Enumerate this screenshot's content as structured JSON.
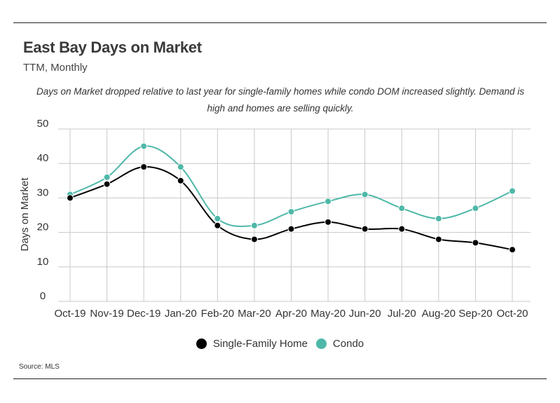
{
  "header": {
    "title": "East Bay Days on Market",
    "subtitle": "TTM, Monthly",
    "caption": "Days on Market dropped relative to last year for single-family homes while condo DOM increased slightly. Demand is high and homes are selling quickly."
  },
  "footer": {
    "source": "Source:  MLS"
  },
  "chart_data": {
    "type": "line",
    "title": "East Bay Days on Market",
    "subtitle": "TTM, Monthly",
    "xlabel": "",
    "ylabel": "Days on Market",
    "ylim": [
      0,
      50
    ],
    "yticks": [
      0,
      10,
      20,
      30,
      40,
      50
    ],
    "grid": true,
    "smooth": true,
    "legend_position": "bottom",
    "categories": [
      "Oct-19",
      "Nov-19",
      "Dec-19",
      "Jan-20",
      "Feb-20",
      "Mar-20",
      "Apr-20",
      "May-20",
      "Jun-20",
      "Jul-20",
      "Aug-20",
      "Sep-20",
      "Oct-20"
    ],
    "series": [
      {
        "name": "Single-Family Home",
        "color": "#000000",
        "values": [
          30,
          34,
          39,
          35,
          22,
          18,
          21,
          23,
          21,
          21,
          18,
          17,
          15
        ]
      },
      {
        "name": "Condo",
        "color": "#4fb8a8",
        "values": [
          31,
          36,
          45,
          39,
          24,
          22,
          26,
          29,
          31,
          27,
          24,
          27,
          32
        ]
      }
    ]
  }
}
